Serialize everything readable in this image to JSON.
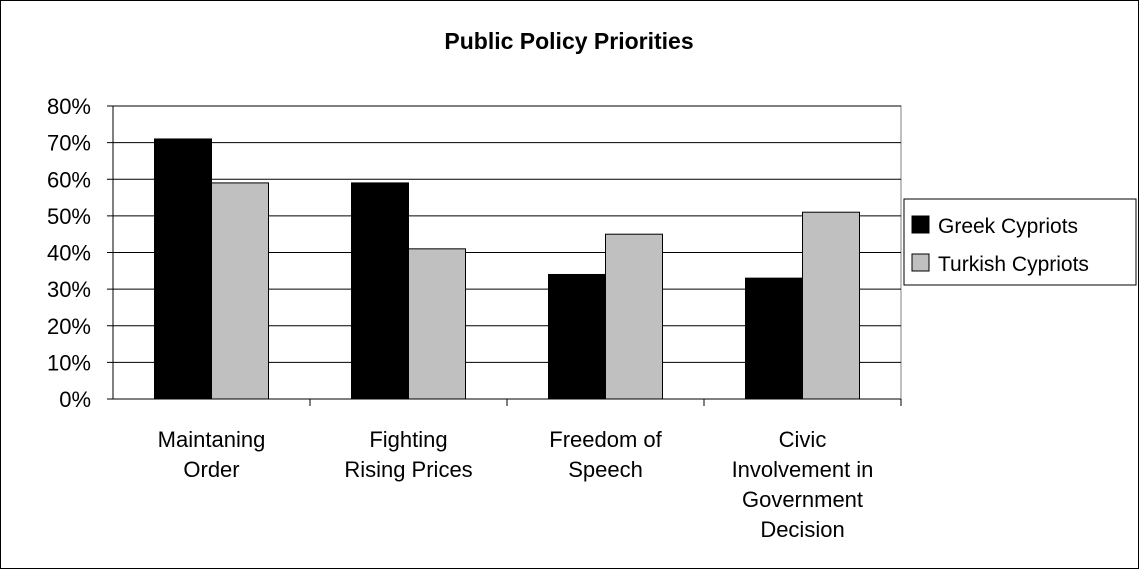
{
  "chart_data": {
    "type": "bar",
    "title": "Public Policy Priorities",
    "xlabel": "",
    "ylabel": "",
    "ylim": [
      0,
      80
    ],
    "y_ticks": [
      0,
      10,
      20,
      30,
      40,
      50,
      60,
      70,
      80
    ],
    "y_tick_labels": [
      "0%",
      "10%",
      "20%",
      "30%",
      "40%",
      "50%",
      "60%",
      "70%",
      "80%"
    ],
    "grid": true,
    "legend_position": "right",
    "categories": [
      [
        "Maintaning",
        "Order"
      ],
      [
        "Fighting",
        "Rising Prices"
      ],
      [
        "Freedom of",
        "Speech"
      ],
      [
        "Civic",
        "Involvement in",
        "Government",
        "Decision"
      ]
    ],
    "series": [
      {
        "name": "Greek Cypriots",
        "color": "#000000",
        "values": [
          71,
          59,
          34,
          33
        ]
      },
      {
        "name": "Turkish Cypriots",
        "color": "#c0c0c0",
        "values": [
          59,
          41,
          45,
          51
        ]
      }
    ]
  }
}
